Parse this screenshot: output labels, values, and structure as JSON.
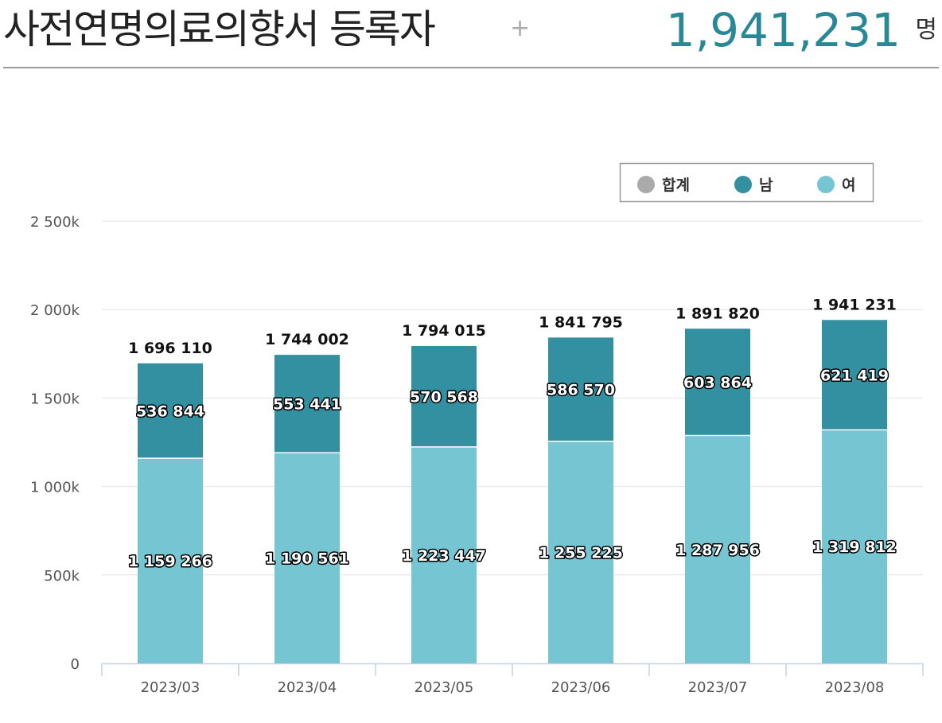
{
  "header": {
    "title": "사전연명의료의향서 등록자",
    "plus": "+",
    "total": "1,941,231",
    "unit": "명"
  },
  "colors": {
    "total": "#aaaaaa",
    "male": "#3290a0",
    "female": "#75c6d2",
    "accent": "#2a8896"
  },
  "chart_data": {
    "type": "bar",
    "stacked": true,
    "categories": [
      "2023/03",
      "2023/04",
      "2023/05",
      "2023/06",
      "2023/07",
      "2023/08"
    ],
    "series": [
      {
        "name": "여",
        "values": [
          1159266,
          1190561,
          1223447,
          1255225,
          1287956,
          1319812
        ],
        "labels": [
          "1 159 266",
          "1 190 561",
          "1 223 447",
          "1 255 225",
          "1 287 956",
          "1 319 812"
        ]
      },
      {
        "name": "남",
        "values": [
          536844,
          553441,
          570568,
          586570,
          603864,
          621419
        ],
        "labels": [
          "536 844",
          "553 441",
          "570 568",
          "586 570",
          "603 864",
          "621 419"
        ]
      }
    ],
    "totals": [
      1696110,
      1744002,
      1794015,
      1841795,
      1891820,
      1941231
    ],
    "total_labels": [
      "1 696 110",
      "1 744 002",
      "1 794 015",
      "1 841 795",
      "1 891 820",
      "1 941 231"
    ],
    "legend": [
      "합계",
      "남",
      "여"
    ],
    "legend_position": "top-right",
    "ylim": [
      0,
      2500000
    ],
    "yticks": [
      0,
      500000,
      1000000,
      1500000,
      2000000,
      2500000
    ],
    "ytick_labels": [
      "0",
      "500k",
      "1 000k",
      "1 500k",
      "2 000k",
      "2 500k"
    ],
    "grid": true
  }
}
